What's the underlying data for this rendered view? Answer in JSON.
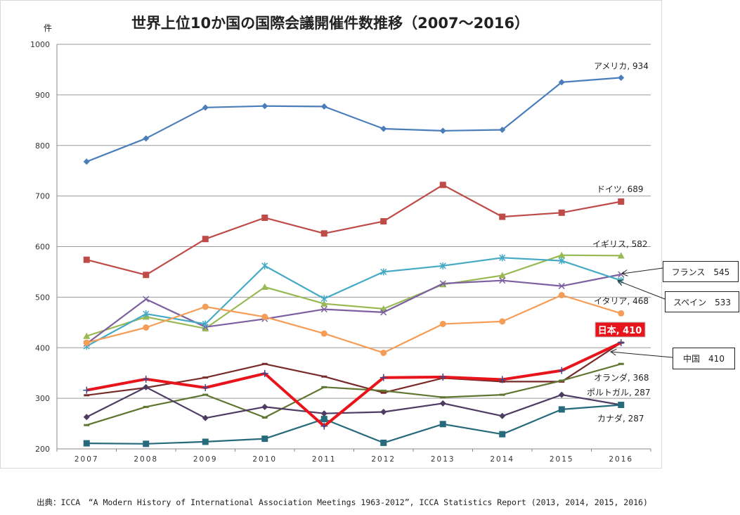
{
  "chart_data": {
    "type": "line",
    "title": "世界上位10か国の国際会議開催件数推移（2007～2016）",
    "ylabel": "件",
    "ylim": [
      200,
      1000
    ],
    "yticks": [
      200,
      300,
      400,
      500,
      600,
      700,
      800,
      900,
      1000
    ],
    "categories": [
      "2007",
      "2008",
      "2009",
      "2010",
      "2011",
      "2012",
      "2013",
      "2014",
      "2015",
      "2016"
    ],
    "grid": true,
    "series": [
      {
        "name": "アメリカ",
        "color": "#4a7ebb",
        "marker": "diamond",
        "values": [
          768,
          814,
          875,
          878,
          877,
          833,
          829,
          831,
          925,
          934
        ]
      },
      {
        "name": "ドイツ",
        "color": "#be4b48",
        "marker": "square",
        "values": [
          574,
          544,
          615,
          657,
          626,
          650,
          722,
          659,
          667,
          689
        ]
      },
      {
        "name": "イギリス",
        "color": "#98b954",
        "marker": "triangle",
        "values": [
          423,
          461,
          438,
          520,
          487,
          477,
          525,
          543,
          583,
          582
        ]
      },
      {
        "name": "フランス",
        "color": "#7d60a0",
        "marker": "x",
        "values": [
          408,
          496,
          441,
          457,
          476,
          470,
          527,
          533,
          522,
          545
        ]
      },
      {
        "name": "スペイン",
        "color": "#46aac5",
        "marker": "star",
        "values": [
          403,
          467,
          447,
          562,
          497,
          550,
          562,
          578,
          572,
          533
        ]
      },
      {
        "name": "イタリア",
        "color": "#f59d56",
        "marker": "circle",
        "values": [
          410,
          440,
          481,
          461,
          428,
          390,
          447,
          452,
          504,
          468
        ]
      },
      {
        "name": "日本",
        "color": "#e8141b",
        "marker": "plus",
        "width": 4,
        "values": [
          316,
          338,
          321,
          349,
          245,
          341,
          342,
          337,
          355,
          410
        ]
      },
      {
        "name": "中国",
        "color": "#772c2a",
        "marker": "dash",
        "values": [
          306,
          321,
          341,
          368,
          343,
          311,
          340,
          333,
          333,
          410
        ]
      },
      {
        "name": "オランダ",
        "color": "#5f7530",
        "marker": "dash",
        "values": [
          247,
          283,
          307,
          262,
          322,
          315,
          302,
          307,
          335,
          368
        ]
      },
      {
        "name": "ポルトガル",
        "color": "#4d3b62",
        "marker": "diamond",
        "values": [
          263,
          322,
          261,
          283,
          270,
          273,
          290,
          265,
          307,
          287
        ]
      },
      {
        "name": "カナダ",
        "color": "#276a7c",
        "marker": "square",
        "values": [
          211,
          210,
          214,
          220,
          259,
          212,
          249,
          229,
          278,
          287
        ]
      }
    ],
    "annotations": {
      "usa": "アメリカ, 934",
      "germany": "ドイツ, 689",
      "uk": "イギリス, 582",
      "italy": "イタリア, 468",
      "japan": "日本, 410",
      "netherlands": "オランダ, 368",
      "portugal": "ポルトガル, 287",
      "canada": "カナダ, 287"
    },
    "callouts": {
      "france": "フランス　545",
      "spain": "スペイン　533",
      "china": "中国　410"
    }
  },
  "source": "出典：ICCA　“A Modern History of International Association Meetings 1963-2012”, ICCA Statistics Report (2013, 2014, 2015, 2016)"
}
